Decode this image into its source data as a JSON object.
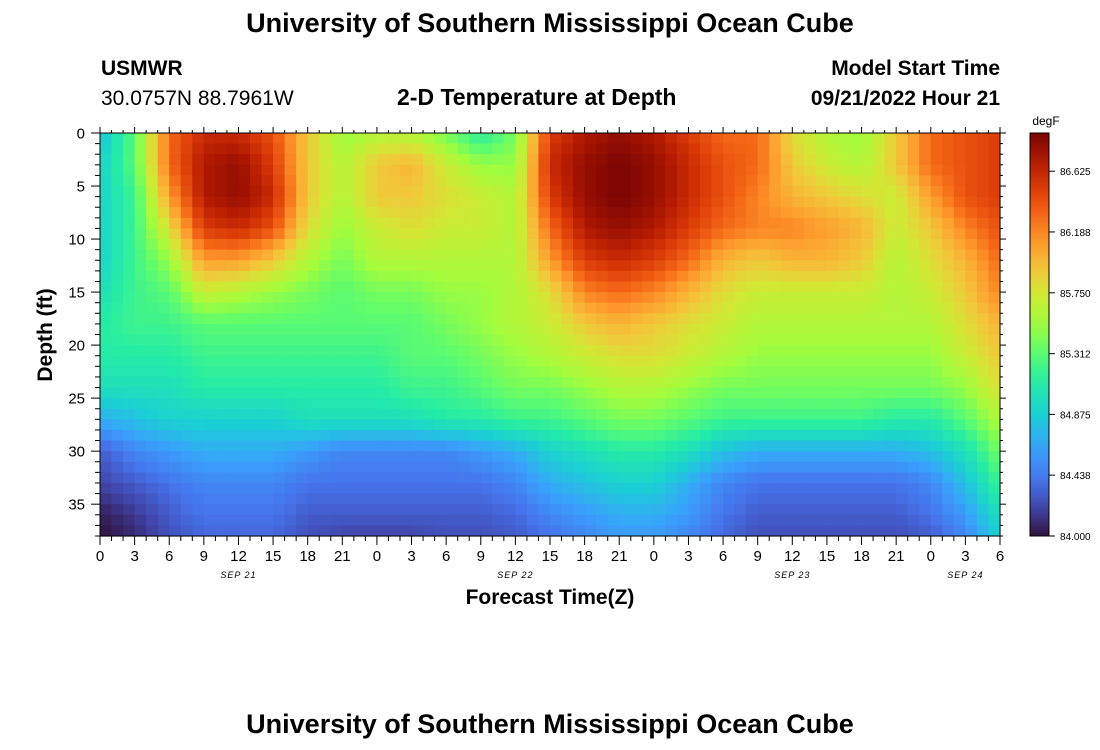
{
  "page": {
    "title": "University of Southern Mississippi Ocean Cube",
    "footer_title": "University of Southern Mississippi Ocean Cube",
    "station": "USMWR",
    "coords": "30.0757N  88.7961W",
    "subtitle": "2-D Temperature at Depth",
    "model_start_label": "Model Start Time",
    "model_start_value": "09/21/2022 Hour 21"
  },
  "chart_data": {
    "type": "heatmap",
    "title": "2-D Temperature at Depth",
    "xlabel": "Forecast Time(Z)",
    "ylabel": "Depth (ft)",
    "x_tick_labels": [
      "0",
      "3",
      "6",
      "9",
      "12",
      "15",
      "18",
      "21",
      "0",
      "3",
      "6",
      "9",
      "12",
      "15",
      "18",
      "21",
      "0",
      "3",
      "6",
      "9",
      "12",
      "15",
      "18",
      "21",
      "0",
      "3",
      "6"
    ],
    "date_labels": [
      {
        "label": "SEP 21",
        "hour": 12
      },
      {
        "label": "SEP 22",
        "hour": 36
      },
      {
        "label": "SEP 23",
        "hour": 60
      },
      {
        "label": "SEP 24",
        "hour": 75
      }
    ],
    "x_range_hours": [
      0,
      78
    ],
    "y_ticks": [
      0,
      5,
      10,
      15,
      20,
      25,
      30,
      35
    ],
    "ylim": [
      0,
      38
    ],
    "colorbar": {
      "unit": "degF",
      "min": 84.0,
      "max": 86.9,
      "tick_values": [
        "86.625",
        "86.188",
        "85.750",
        "85.312",
        "84.875",
        "84.438",
        "84.000"
      ],
      "tick_positions": [
        86.625,
        86.188,
        85.75,
        85.312,
        84.875,
        84.438,
        84.0
      ]
    },
    "grid": {
      "x_hours": [
        0,
        3,
        6,
        9,
        12,
        15,
        18,
        21,
        24,
        27,
        30,
        33,
        36,
        39,
        42,
        45,
        48,
        51,
        54,
        57,
        60,
        63,
        66,
        69,
        72,
        75,
        78
      ],
      "y_depths": [
        0,
        3,
        6,
        9,
        12,
        15,
        18,
        21,
        24,
        27,
        30,
        33,
        36,
        38
      ],
      "values": [
        [
          84.8,
          85.3,
          86.3,
          86.6,
          86.6,
          86.4,
          85.9,
          85.5,
          85.6,
          85.6,
          85.4,
          85.1,
          85.4,
          86.5,
          86.7,
          86.8,
          86.7,
          86.5,
          86.3,
          86.3,
          85.8,
          85.6,
          85.5,
          85.9,
          86.3,
          86.4,
          86.5
        ],
        [
          84.9,
          85.3,
          86.3,
          86.7,
          86.8,
          86.5,
          85.9,
          85.6,
          85.9,
          86.0,
          85.7,
          85.5,
          85.5,
          86.6,
          86.8,
          86.9,
          86.8,
          86.6,
          86.4,
          86.3,
          85.9,
          85.7,
          85.6,
          85.9,
          86.3,
          86.4,
          86.5
        ],
        [
          84.9,
          85.2,
          86.1,
          86.7,
          86.8,
          86.6,
          85.9,
          85.6,
          85.9,
          85.9,
          85.8,
          85.7,
          85.6,
          86.5,
          86.8,
          86.9,
          86.8,
          86.6,
          86.4,
          86.2,
          86.0,
          85.9,
          85.8,
          85.7,
          86.1,
          86.4,
          86.5
        ],
        [
          84.9,
          85.2,
          85.8,
          86.5,
          86.6,
          86.4,
          85.8,
          85.5,
          85.7,
          85.8,
          85.7,
          85.7,
          85.6,
          86.3,
          86.7,
          86.8,
          86.7,
          86.5,
          86.3,
          86.2,
          86.2,
          86.1,
          86.0,
          85.7,
          85.9,
          86.2,
          86.4
        ],
        [
          84.9,
          85.2,
          85.5,
          86.1,
          86.1,
          85.9,
          85.6,
          85.4,
          85.6,
          85.6,
          85.6,
          85.6,
          85.6,
          86.1,
          86.5,
          86.6,
          86.5,
          86.3,
          86.0,
          85.9,
          86.0,
          86.0,
          85.9,
          85.6,
          85.8,
          86.0,
          86.3
        ],
        [
          85.0,
          85.2,
          85.3,
          85.7,
          85.6,
          85.5,
          85.4,
          85.3,
          85.4,
          85.4,
          85.5,
          85.5,
          85.6,
          85.8,
          86.2,
          86.3,
          86.2,
          86.0,
          85.8,
          85.7,
          85.7,
          85.7,
          85.7,
          85.6,
          85.7,
          85.9,
          86.2
        ],
        [
          85.1,
          85.2,
          85.2,
          85.3,
          85.3,
          85.3,
          85.3,
          85.3,
          85.3,
          85.3,
          85.4,
          85.5,
          85.6,
          85.7,
          85.9,
          86.0,
          85.9,
          85.8,
          85.7,
          85.6,
          85.6,
          85.6,
          85.6,
          85.6,
          85.6,
          85.8,
          86.0
        ],
        [
          85.1,
          85.1,
          85.1,
          85.2,
          85.2,
          85.2,
          85.2,
          85.2,
          85.2,
          85.3,
          85.3,
          85.4,
          85.5,
          85.6,
          85.7,
          85.8,
          85.8,
          85.7,
          85.6,
          85.5,
          85.5,
          85.5,
          85.5,
          85.5,
          85.5,
          85.7,
          85.9
        ],
        [
          85.0,
          85.0,
          85.0,
          85.1,
          85.1,
          85.1,
          85.1,
          85.1,
          85.1,
          85.2,
          85.2,
          85.3,
          85.4,
          85.4,
          85.5,
          85.6,
          85.6,
          85.5,
          85.4,
          85.4,
          85.4,
          85.4,
          85.4,
          85.4,
          85.4,
          85.5,
          85.8
        ],
        [
          84.7,
          84.8,
          84.9,
          84.9,
          84.9,
          84.9,
          85.0,
          85.0,
          85.0,
          85.0,
          85.1,
          85.1,
          85.2,
          85.2,
          85.3,
          85.4,
          85.4,
          85.3,
          85.2,
          85.2,
          85.2,
          85.2,
          85.2,
          85.1,
          85.1,
          85.3,
          85.6
        ],
        [
          84.3,
          84.5,
          84.6,
          84.7,
          84.7,
          84.7,
          84.6,
          84.5,
          84.5,
          84.5,
          84.5,
          84.6,
          84.7,
          84.9,
          85.0,
          85.1,
          85.1,
          85.0,
          84.8,
          84.7,
          84.7,
          84.7,
          84.7,
          84.7,
          84.8,
          85.0,
          85.4
        ],
        [
          84.2,
          84.3,
          84.4,
          84.5,
          84.5,
          84.5,
          84.4,
          84.4,
          84.4,
          84.4,
          84.4,
          84.4,
          84.5,
          84.7,
          84.8,
          84.9,
          84.9,
          84.7,
          84.5,
          84.4,
          84.4,
          84.4,
          84.4,
          84.4,
          84.5,
          84.8,
          85.2
        ],
        [
          84.05,
          84.15,
          84.3,
          84.4,
          84.4,
          84.4,
          84.3,
          84.3,
          84.3,
          84.3,
          84.3,
          84.3,
          84.35,
          84.5,
          84.6,
          84.7,
          84.7,
          84.6,
          84.4,
          84.3,
          84.3,
          84.3,
          84.3,
          84.3,
          84.4,
          84.6,
          85.0
        ],
        [
          84.0,
          84.1,
          84.25,
          84.35,
          84.35,
          84.35,
          84.25,
          84.2,
          84.2,
          84.2,
          84.25,
          84.25,
          84.3,
          84.4,
          84.5,
          84.6,
          84.6,
          84.5,
          84.35,
          84.25,
          84.25,
          84.25,
          84.25,
          84.25,
          84.3,
          84.5,
          84.9
        ]
      ]
    }
  }
}
